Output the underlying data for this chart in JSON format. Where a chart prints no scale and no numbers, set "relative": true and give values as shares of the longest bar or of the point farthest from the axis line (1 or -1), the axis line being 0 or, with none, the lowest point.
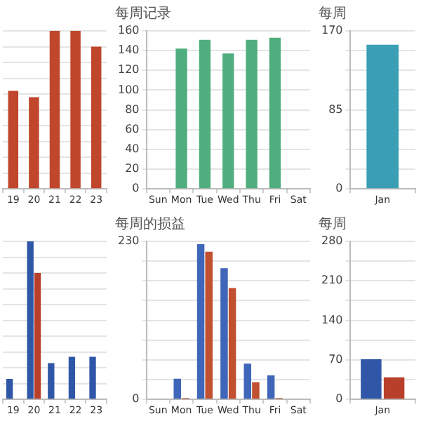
{
  "chart_data": [
    {
      "type": "bar",
      "relative": true,
      "categories": [
        "19",
        "20",
        "21",
        "22",
        "23"
      ],
      "values": [
        0.62,
        0.58,
        1,
        1,
        0.9
      ],
      "color": "#c0462c",
      "grid": "y"
    },
    {
      "type": "bar",
      "title": "每周记录",
      "categories": [
        "Sun",
        "Mon",
        "Tue",
        "Wed",
        "Thu",
        "Fri",
        "Sat"
      ],
      "values": [
        null,
        142,
        151,
        137,
        151,
        153,
        null
      ],
      "color": "#4fae7e",
      "ylim": [
        0,
        160
      ],
      "yticks": [
        0,
        20,
        40,
        60,
        80,
        100,
        120,
        140,
        160
      ],
      "grid": "y"
    },
    {
      "type": "bar",
      "title": "每周",
      "categories": [
        "Jan"
      ],
      "values": [
        155
      ],
      "color": "#3a9fb5",
      "ylim": [
        0,
        170
      ],
      "yticks": [
        0,
        {
          "value": 21.25,
          "label": null
        },
        {
          "value": 42.5,
          "label": null
        },
        {
          "value": 63.75,
          "label": null
        },
        85,
        {
          "value": 106.25,
          "label": null
        },
        {
          "value": 127.5,
          "label": null
        },
        {
          "value": 148.75,
          "label": null
        },
        170
      ],
      "grid": "y"
    },
    {
      "type": "bar",
      "relative": true,
      "categories": [
        "19",
        "20",
        "21",
        "22",
        "23"
      ],
      "series": [
        {
          "color": "#3056a8",
          "values": [
            0.13,
            1,
            0.23,
            0.27,
            0.27
          ]
        },
        {
          "color": "#b8402a",
          "values": [
            0,
            0.8,
            0,
            0,
            0
          ]
        }
      ],
      "grid": "y"
    },
    {
      "type": "bar",
      "title": "每周的损益",
      "categories": [
        "Sun",
        "Mon",
        "Tue",
        "Wed",
        "Thu",
        "Fri",
        "Sat"
      ],
      "series": [
        {
          "color": "#3f66b8",
          "values": [
            null,
            30,
            226,
            191,
            52,
            35,
            null
          ]
        },
        {
          "color": "#c0502f",
          "values": [
            null,
            2,
            215,
            162,
            25,
            2,
            null
          ]
        }
      ],
      "ylim": [
        0,
        230
      ],
      "yticks": [
        0,
        {
          "value": 28.75,
          "label": null
        },
        {
          "value": 57.5,
          "label": null
        },
        {
          "value": 86.25,
          "label": null
        },
        {
          "value": 115,
          "label": null
        },
        {
          "value": 143.75,
          "label": null
        },
        {
          "value": 172.5,
          "label": null
        },
        {
          "value": 201.25,
          "label": null
        },
        230
      ],
      "grid": "y"
    },
    {
      "type": "bar",
      "title": "每周",
      "categories": [
        "Jan"
      ],
      "series": [
        {
          "color": "#3056a8",
          "values": [
            71
          ]
        },
        {
          "color": "#b8402a",
          "values": [
            39
          ]
        }
      ],
      "ylim": [
        0,
        280
      ],
      "yticks": [
        0,
        {
          "value": 35,
          "label": null
        },
        70,
        {
          "value": 105,
          "label": null
        },
        140,
        {
          "value": 175,
          "label": null
        },
        210,
        {
          "value": 245,
          "label": null
        },
        280
      ],
      "grid": "y"
    }
  ]
}
